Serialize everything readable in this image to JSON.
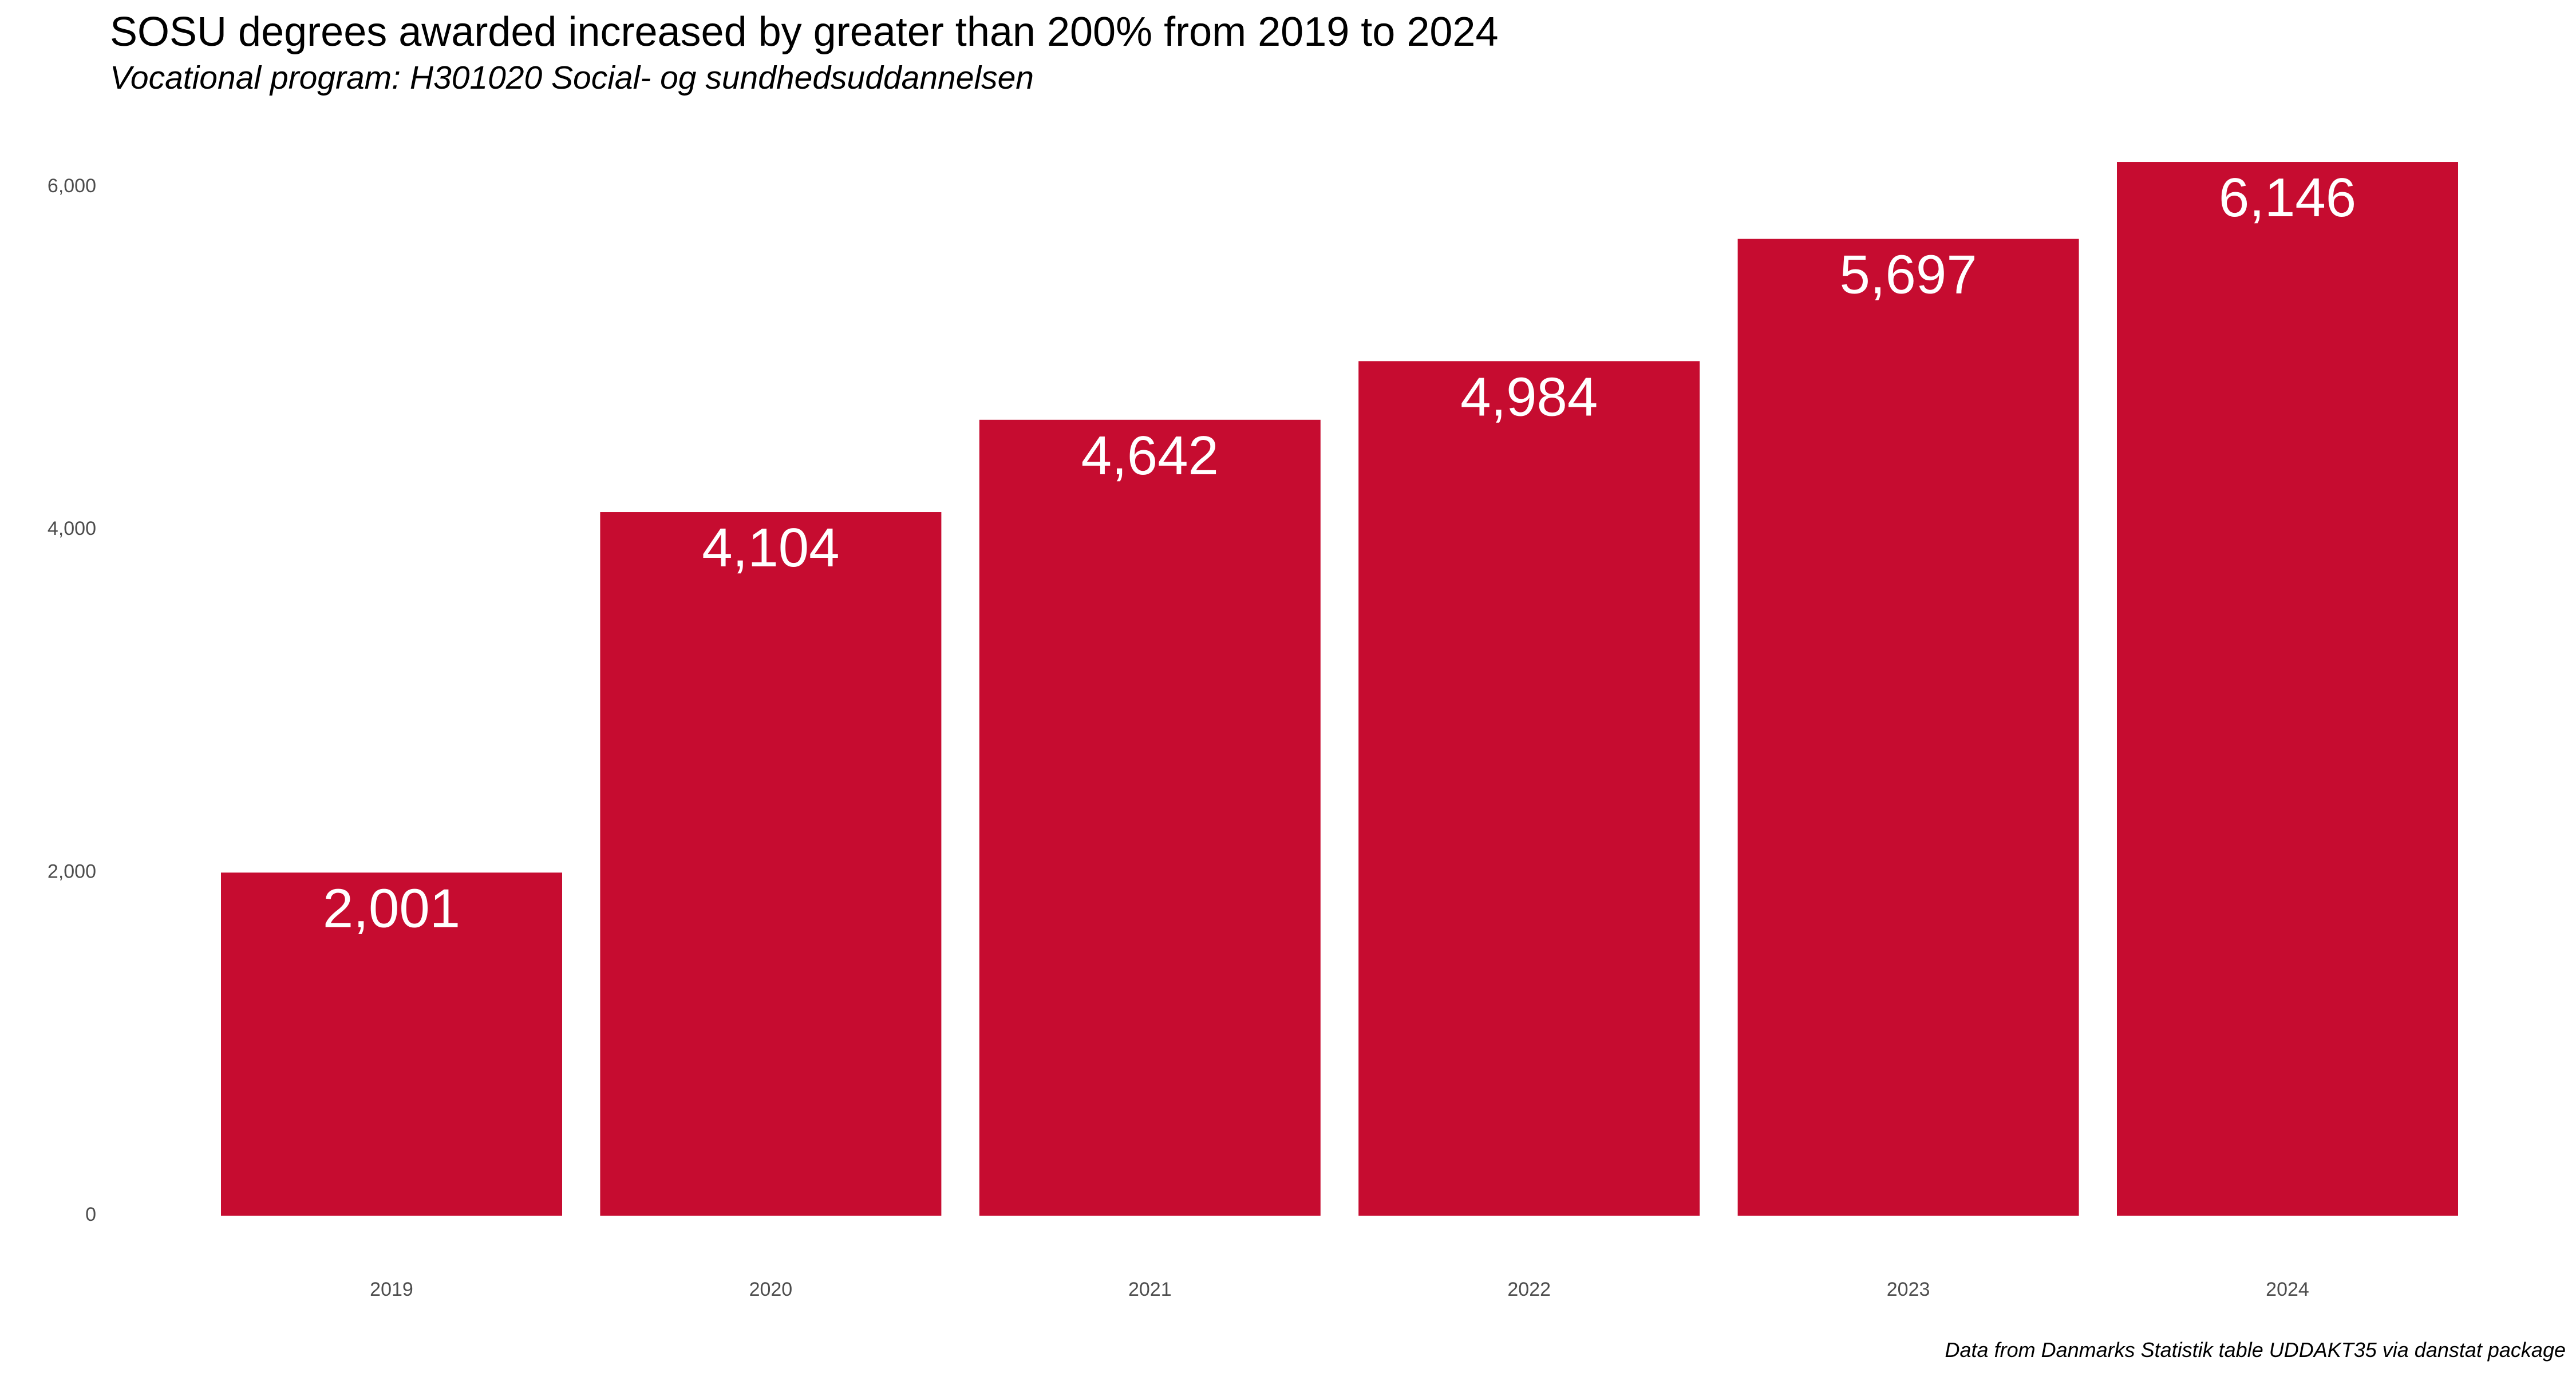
{
  "title": "SOSU degrees awarded increased by greater than 200% from 2019 to 2024",
  "subtitle": "Vocational program: H301020 Social- og sundhedsuddannelsen",
  "caption": "Data from Danmarks Statistik table UDDAKT35 via danstat package",
  "colors": {
    "bar": "#C60C30",
    "bar_label": "#FFFFFF",
    "tick_label": "#4D4D4D",
    "background": "#FFFFFF"
  },
  "chart_data": {
    "type": "bar",
    "title": "SOSU degrees awarded increased by greater than 200% from 2019 to 2024",
    "subtitle": "Vocational program: H301020 Social- og sundhedsuddannelsen",
    "xlabel": "",
    "ylabel": "",
    "categories": [
      "2019",
      "2020",
      "2021",
      "2022",
      "2023",
      "2024"
    ],
    "values": [
      2001,
      4104,
      4642,
      4984,
      5697,
      6146
    ],
    "value_labels": [
      "2,001",
      "4,104",
      "4,642",
      "4,984",
      "5,697",
      "6,146"
    ],
    "yticks": [
      0,
      2000,
      4000,
      6000
    ],
    "ytick_labels": [
      "0",
      "2,000",
      "4,000",
      "6,000"
    ],
    "ylim": [
      0,
      6146
    ],
    "grid": false,
    "legend": "none"
  }
}
